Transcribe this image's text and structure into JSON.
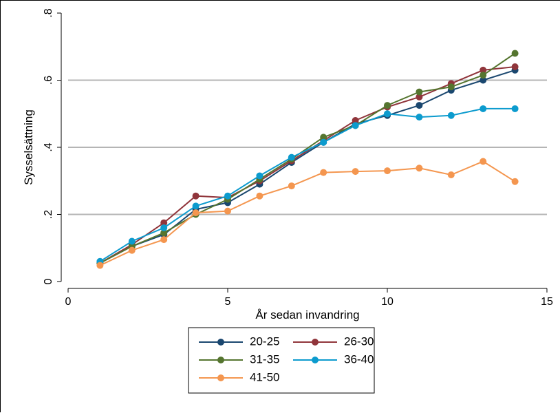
{
  "chart_data": {
    "type": "line",
    "xlabel": "År sedan invandring",
    "ylabel": "Sysselsättning",
    "xlim": [
      0,
      15
    ],
    "ylim": [
      0,
      0.8
    ],
    "x_ticks": [
      0,
      5,
      10,
      15
    ],
    "x_tick_labels": [
      "0",
      "5",
      "10",
      "15"
    ],
    "y_ticks": [
      0,
      0.2,
      0.4,
      0.6,
      0.8
    ],
    "y_tick_labels": [
      "0",
      ".2",
      ".4",
      ".6",
      ".8"
    ],
    "grid": "horizontal",
    "legend_position": "bottom",
    "x": [
      1,
      2,
      3,
      4,
      5,
      6,
      7,
      8,
      9,
      10,
      11,
      12,
      13,
      14
    ],
    "series": [
      {
        "name": "20-25",
        "color": "#1a476f",
        "values": [
          0.055,
          0.105,
          0.14,
          0.215,
          0.235,
          0.29,
          0.355,
          0.415,
          0.47,
          0.495,
          0.525,
          0.57,
          0.6,
          0.63
        ]
      },
      {
        "name": "26-30",
        "color": "#90353b",
        "values": [
          0.055,
          0.11,
          0.175,
          0.255,
          0.25,
          0.3,
          0.36,
          0.42,
          0.48,
          0.52,
          0.55,
          0.59,
          0.63,
          0.64
        ]
      },
      {
        "name": "31-35",
        "color": "#55752f",
        "values": [
          0.055,
          0.105,
          0.145,
          0.2,
          0.245,
          0.305,
          0.365,
          0.43,
          0.465,
          0.525,
          0.565,
          0.58,
          0.615,
          0.68
        ]
      },
      {
        "name": "36-40",
        "color": "#0c9bce",
        "values": [
          0.06,
          0.12,
          0.16,
          0.225,
          0.255,
          0.315,
          0.37,
          0.415,
          0.465,
          0.5,
          0.49,
          0.495,
          0.515,
          0.515
        ]
      },
      {
        "name": "41-50",
        "color": "#f4964f",
        "values": [
          0.048,
          0.093,
          0.125,
          0.205,
          0.21,
          0.255,
          0.285,
          0.325,
          0.328,
          0.33,
          0.338,
          0.318,
          0.358,
          0.298
        ]
      }
    ]
  }
}
